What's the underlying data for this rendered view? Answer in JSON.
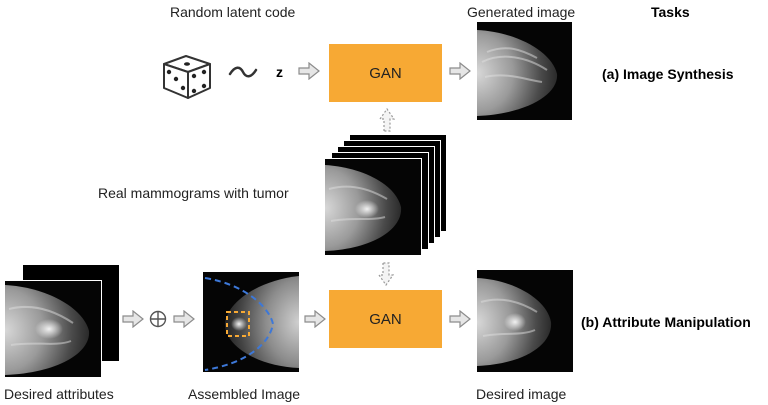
{
  "labels": {
    "random_latent_code": "Random latent code",
    "generated_image": "Generated image",
    "tasks": "Tasks",
    "z": "z",
    "gan_top": "GAN",
    "gan_bottom": "GAN",
    "task_a": "(a) Image Synthesis",
    "real_mammograms": "Real mammograms with tumor",
    "task_b": "(b) Attribute Manipulation",
    "desired_attributes": "Desired attributes",
    "assembled_image": "Assembled Image",
    "desired_image": "Desired image"
  },
  "colors": {
    "gan_fill": "#f7a934",
    "dashed_outline": "#3d78d8",
    "lesion_box": "#f7a934",
    "arrow_fill": "#e6e6e6",
    "arrow_stroke": "#8c8c8c"
  },
  "icons": [
    "dice-icon",
    "tilde-icon",
    "circled-plus-icon",
    "arrow-icon"
  ]
}
